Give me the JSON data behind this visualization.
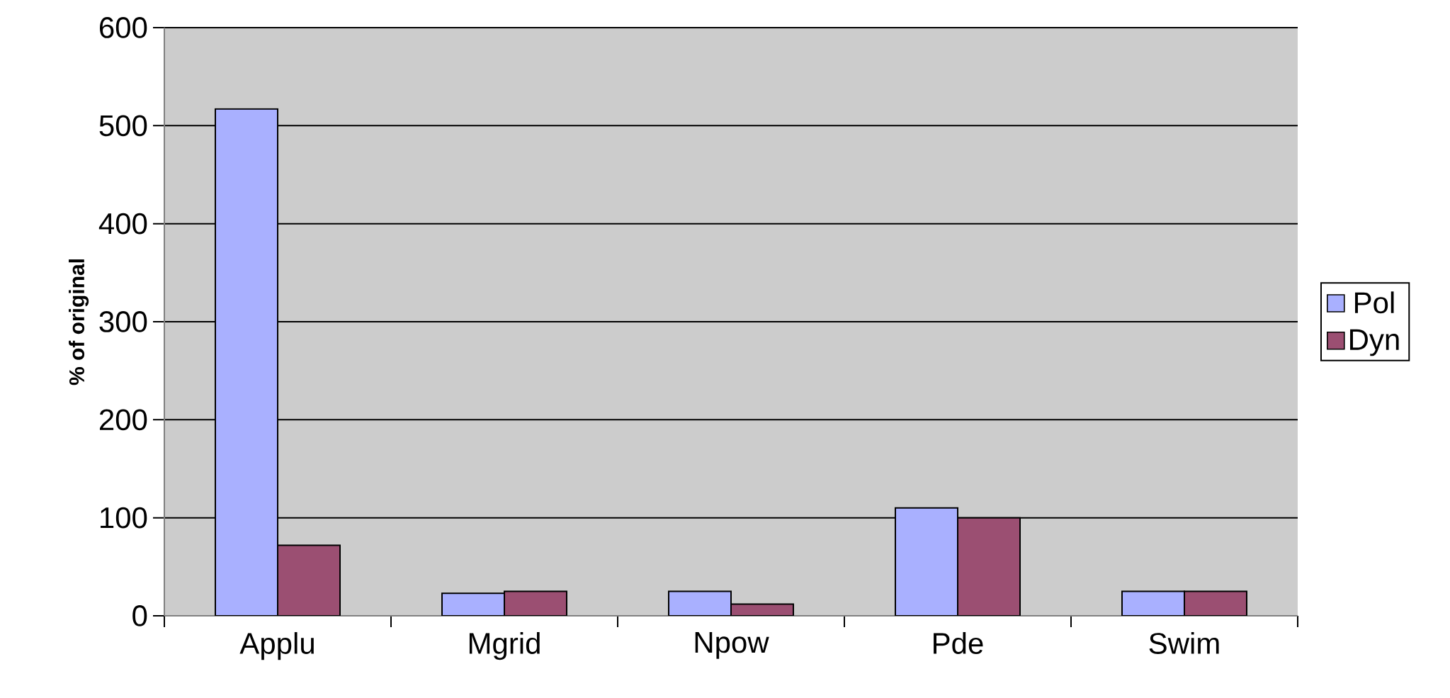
{
  "chart_data": {
    "type": "bar",
    "ylabel": "% of original",
    "categories": [
      "Applu",
      "Mgrid",
      "Npow",
      "Pde",
      "Swim"
    ],
    "series": [
      {
        "name": "Pol",
        "color": "#a9b0ff",
        "values": [
          517,
          23,
          25,
          110,
          25
        ]
      },
      {
        "name": "Dyn",
        "color": "#9b4f72",
        "values": [
          72,
          25,
          12,
          100,
          25
        ]
      }
    ],
    "ylim": [
      0,
      600
    ],
    "yticks": [
      0,
      100,
      200,
      300,
      400,
      500,
      600
    ],
    "grid": "y",
    "legend": "right"
  }
}
